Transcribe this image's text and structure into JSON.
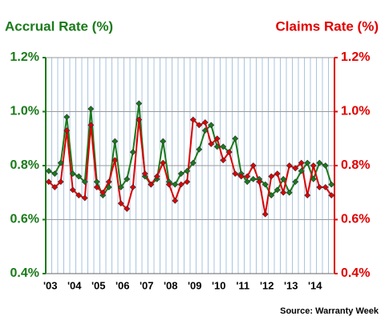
{
  "chart_data": {
    "type": "line",
    "title_left": "Accrual Rate (%)",
    "title_right": "Claims Rate (%)",
    "source": "Source: Warranty Week",
    "categories": [
      "'03",
      null,
      null,
      null,
      "'04",
      null,
      null,
      null,
      "'05",
      null,
      null,
      null,
      "'06",
      null,
      null,
      null,
      "'07",
      null,
      null,
      null,
      "'08",
      null,
      null,
      null,
      "'09",
      null,
      null,
      null,
      "'10",
      null,
      null,
      null,
      "'11",
      null,
      null,
      null,
      "'12",
      null,
      null,
      null,
      "'13",
      null,
      null,
      null,
      "'14",
      null,
      null,
      null
    ],
    "series": [
      {
        "name": "Accrual Rate (%)",
        "color": "#1a7a1a",
        "axis": "y",
        "values": [
          0.78,
          0.77,
          0.81,
          0.98,
          0.77,
          0.76,
          0.74,
          1.01,
          0.74,
          0.69,
          0.72,
          0.89,
          0.72,
          0.75,
          0.85,
          1.03,
          0.76,
          0.73,
          0.75,
          0.89,
          0.74,
          0.73,
          0.77,
          0.78,
          0.81,
          0.86,
          0.93,
          0.95,
          0.87,
          0.87,
          0.85,
          0.9,
          0.77,
          0.74,
          0.75,
          0.75,
          0.73,
          0.69,
          0.71,
          0.75,
          0.7,
          0.74,
          0.78,
          0.81,
          0.75,
          0.81,
          0.8,
          0.73
        ]
      },
      {
        "name": "Claims Rate (%)",
        "color": "#e00000",
        "axis": "y2",
        "values": [
          0.74,
          0.72,
          0.74,
          0.93,
          0.71,
          0.69,
          0.68,
          0.95,
          0.72,
          0.7,
          0.74,
          0.82,
          0.66,
          0.64,
          0.72,
          0.97,
          0.77,
          0.73,
          0.76,
          0.81,
          0.73,
          0.67,
          0.73,
          0.74,
          0.97,
          0.95,
          0.96,
          0.88,
          0.9,
          0.82,
          0.85,
          0.77,
          0.76,
          0.76,
          0.8,
          0.74,
          0.62,
          0.76,
          0.77,
          0.7,
          0.8,
          0.79,
          0.81,
          0.69,
          0.8,
          0.72,
          0.72,
          0.69
        ]
      }
    ],
    "ylim": [
      0.4,
      1.2
    ],
    "yticks": [
      {
        "value": 0.4,
        "label": "0.4%"
      },
      {
        "value": 0.6,
        "label": "0.6%"
      },
      {
        "value": 0.8,
        "label": "0.8%"
      },
      {
        "value": 1.0,
        "label": "1.0%"
      },
      {
        "value": 1.2,
        "label": "1.2%"
      }
    ],
    "y2lim": [
      0.4,
      1.2
    ],
    "y2ticks": [
      {
        "value": 0.4,
        "label": "0.4%"
      },
      {
        "value": 0.6,
        "label": "0.6%"
      },
      {
        "value": 0.8,
        "label": "0.8%"
      },
      {
        "value": 1.0,
        "label": "1.0%"
      },
      {
        "value": 1.2,
        "label": "1.2%"
      }
    ],
    "left_axis_color": "#1a7a1a",
    "right_axis_color": "#e00000",
    "grid": true
  }
}
